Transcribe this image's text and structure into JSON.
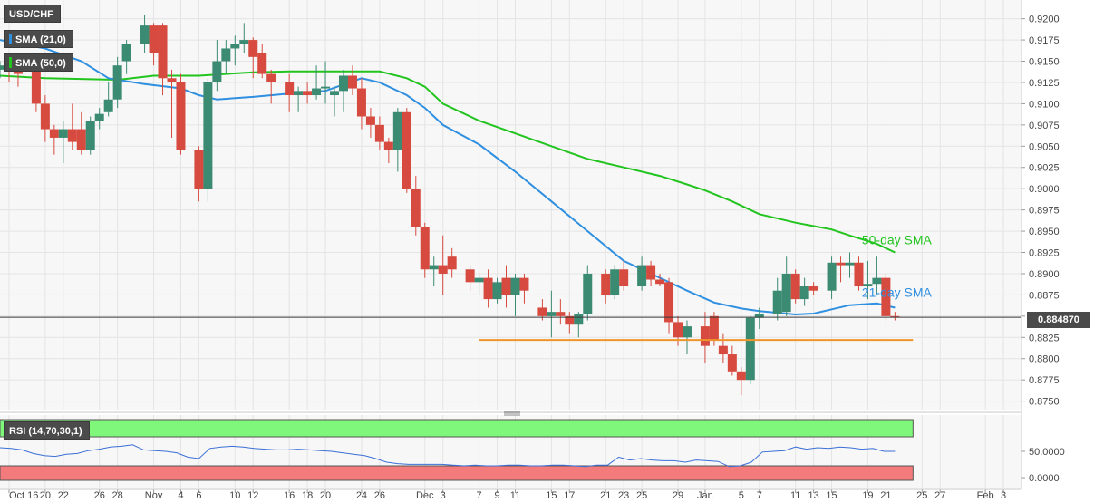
{
  "legend": {
    "symbol": "USD/CHF",
    "sma21": "SMA (21,0)",
    "sma50": "SMA (50,0)",
    "rsi": "RSI (14,70,30,1)"
  },
  "colors": {
    "bull": "#3b8a72",
    "bear": "#d64a3f",
    "sma21": "#2f8fe0",
    "sma50": "#22c41e",
    "support": "#f0952b",
    "rsi_line": "#3b6fd6",
    "rsi_overbought": "#7ef77a",
    "rsi_oversold": "#f47b7b"
  },
  "last_price": "0.884870",
  "annotations": {
    "sma50": "50-day SMA",
    "sma21": "21-day SMA"
  },
  "chart_data": {
    "type": "candlestick",
    "y_ticks": [
      "0.9200",
      "0.9175",
      "0.9150",
      "0.9125",
      "0.9100",
      "0.9075",
      "0.9050",
      "0.9025",
      "0.9000",
      "0.8975",
      "0.8950",
      "0.8925",
      "0.8900",
      "0.8875",
      "0.8850",
      "0.8825",
      "0.8800",
      "0.8775",
      "0.8750"
    ],
    "y_tick_values": [
      0.92,
      0.9175,
      0.915,
      0.9125,
      0.91,
      0.9075,
      0.905,
      0.9025,
      0.9,
      0.8975,
      0.895,
      0.8925,
      0.89,
      0.8875,
      0.885,
      0.8825,
      0.88,
      0.8775,
      0.875
    ],
    "ylim": [
      0.874,
      0.9222
    ],
    "x_ticks": [
      "Oct 16",
      "20",
      "22",
      "26",
      "28",
      "Nov",
      "4",
      "6",
      "10",
      "12",
      "16",
      "18",
      "20",
      "24",
      "26",
      "Dec",
      "3",
      "7",
      "9",
      "11",
      "15",
      "17",
      "21",
      "23",
      "25",
      "29",
      "Jan",
      "5",
      "7",
      "11",
      "13",
      "15",
      "19",
      "21",
      "25",
      "27",
      "Feb",
      "3"
    ],
    "x_tick_dates": [
      "2017-10-16",
      "2017-10-20",
      "2017-10-22",
      "2017-10-26",
      "2017-10-28",
      "2017-11-01",
      "2017-11-04",
      "2017-11-06",
      "2017-11-10",
      "2017-11-12",
      "2017-11-16",
      "2017-11-18",
      "2017-11-20",
      "2017-11-24",
      "2017-11-26",
      "2017-12-01",
      "2017-12-03",
      "2017-12-07",
      "2017-12-09",
      "2017-12-11",
      "2017-12-15",
      "2017-12-17",
      "2017-12-21",
      "2017-12-23",
      "2017-12-25",
      "2017-12-29",
      "2018-01-01",
      "2018-01-05",
      "2018-01-07",
      "2018-01-11",
      "2018-01-13",
      "2018-01-15",
      "2018-01-19",
      "2018-01-21",
      "2018-01-25",
      "2018-01-27",
      "2018-02-01",
      "2018-02-03"
    ],
    "xlim": [
      "2017-10-15",
      "2018-02-05"
    ],
    "candles": [
      [
        "2017-10-15",
        0.914,
        0.915,
        0.913,
        0.9145
      ],
      [
        "2017-10-16",
        0.9145,
        0.916,
        0.9125,
        0.914
      ],
      [
        "2017-10-17",
        0.914,
        0.915,
        0.912,
        0.9135
      ],
      [
        "2017-10-19",
        0.9145,
        0.915,
        0.909,
        0.91
      ],
      [
        "2017-10-20",
        0.91,
        0.911,
        0.9055,
        0.907
      ],
      [
        "2017-10-21",
        0.907,
        0.9075,
        0.904,
        0.906
      ],
      [
        "2017-10-22",
        0.906,
        0.908,
        0.903,
        0.907
      ],
      [
        "2017-10-23",
        0.907,
        0.91,
        0.9045,
        0.9055
      ],
      [
        "2017-10-24",
        0.907,
        0.909,
        0.904,
        0.9045
      ],
      [
        "2017-10-25",
        0.9045,
        0.9085,
        0.904,
        0.908
      ],
      [
        "2017-10-26",
        0.908,
        0.9095,
        0.907,
        0.9088
      ],
      [
        "2017-10-27",
        0.909,
        0.9125,
        0.9085,
        0.9105
      ],
      [
        "2017-10-28",
        0.9105,
        0.9155,
        0.9095,
        0.9145
      ],
      [
        "2017-10-29",
        0.915,
        0.9175,
        0.9135,
        0.917
      ],
      [
        "2017-10-31",
        0.917,
        0.9205,
        0.916,
        0.9192
      ],
      [
        "2017-11-01",
        0.9192,
        0.9195,
        0.9145,
        0.916
      ],
      [
        "2017-11-02",
        0.9192,
        0.9195,
        0.911,
        0.913
      ],
      [
        "2017-11-03",
        0.913,
        0.914,
        0.906,
        0.9125
      ],
      [
        "2017-11-04",
        0.9125,
        0.9135,
        0.904,
        0.9045
      ],
      [
        "2017-11-06",
        0.9045,
        0.905,
        0.8985,
        0.9
      ],
      [
        "2017-11-07",
        0.9,
        0.913,
        0.8985,
        0.9125
      ],
      [
        "2017-11-08",
        0.9125,
        0.9175,
        0.9115,
        0.915
      ],
      [
        "2017-11-09",
        0.915,
        0.9175,
        0.9135,
        0.9165
      ],
      [
        "2017-11-10",
        0.9165,
        0.918,
        0.9145,
        0.917
      ],
      [
        "2017-11-11",
        0.917,
        0.9195,
        0.916,
        0.9175
      ],
      [
        "2017-11-12",
        0.9175,
        0.9178,
        0.913,
        0.9155
      ],
      [
        "2017-11-13",
        0.916,
        0.917,
        0.913,
        0.9135
      ],
      [
        "2017-11-14",
        0.9135,
        0.914,
        0.91,
        0.9125
      ],
      [
        "2017-11-16",
        0.9125,
        0.9135,
        0.909,
        0.911
      ],
      [
        "2017-11-17",
        0.911,
        0.912,
        0.909,
        0.9115
      ],
      [
        "2017-11-18",
        0.9115,
        0.9125,
        0.91,
        0.911
      ],
      [
        "2017-11-19",
        0.911,
        0.9145,
        0.9105,
        0.9118
      ],
      [
        "2017-11-20",
        0.9118,
        0.915,
        0.91,
        0.912
      ],
      [
        "2017-11-21",
        0.911,
        0.912,
        0.9085,
        0.9115
      ],
      [
        "2017-11-22",
        0.9115,
        0.914,
        0.909,
        0.9133
      ],
      [
        "2017-11-23",
        0.9133,
        0.9145,
        0.911,
        0.9118
      ],
      [
        "2017-11-24",
        0.9118,
        0.913,
        0.907,
        0.9085
      ],
      [
        "2017-11-25",
        0.9085,
        0.9095,
        0.906,
        0.9075
      ],
      [
        "2017-11-26",
        0.9075,
        0.9085,
        0.9045,
        0.9055
      ],
      [
        "2017-11-27",
        0.9055,
        0.906,
        0.903,
        0.9045
      ],
      [
        "2017-11-28",
        0.9045,
        0.9095,
        0.902,
        0.909
      ],
      [
        "2017-11-29",
        0.909,
        0.9095,
        0.8995,
        0.9
      ],
      [
        "2017-11-30",
        0.9,
        0.9015,
        0.8945,
        0.8955
      ],
      [
        "2017-12-01",
        0.8955,
        0.896,
        0.8895,
        0.8905
      ],
      [
        "2017-12-02",
        0.8905,
        0.892,
        0.8885,
        0.891
      ],
      [
        "2017-12-03",
        0.891,
        0.8945,
        0.8875,
        0.89
      ],
      [
        "2017-12-04",
        0.892,
        0.893,
        0.8895,
        0.8905
      ],
      [
        "2017-12-06",
        0.8905,
        0.891,
        0.888,
        0.889
      ],
      [
        "2017-12-07",
        0.889,
        0.89,
        0.8875,
        0.8895
      ],
      [
        "2017-12-08",
        0.8895,
        0.8905,
        0.886,
        0.887
      ],
      [
        "2017-12-09",
        0.887,
        0.8895,
        0.8865,
        0.889
      ],
      [
        "2017-12-10",
        0.8895,
        0.891,
        0.886,
        0.8875
      ],
      [
        "2017-12-11",
        0.8875,
        0.89,
        0.885,
        0.8895
      ],
      [
        "2017-12-12",
        0.8895,
        0.89,
        0.8865,
        0.888
      ],
      [
        "2017-12-14",
        0.886,
        0.887,
        0.8845,
        0.885
      ],
      [
        "2017-12-15",
        0.885,
        0.888,
        0.8825,
        0.8855
      ],
      [
        "2017-12-16",
        0.8855,
        0.887,
        0.884,
        0.885
      ],
      [
        "2017-12-17",
        0.885,
        0.8855,
        0.883,
        0.884
      ],
      [
        "2017-12-18",
        0.884,
        0.8855,
        0.8825,
        0.8853
      ],
      [
        "2017-12-19",
        0.8853,
        0.891,
        0.8845,
        0.89
      ],
      [
        "2017-12-21",
        0.89,
        0.8905,
        0.8865,
        0.8875
      ],
      [
        "2017-12-22",
        0.8875,
        0.891,
        0.887,
        0.8905
      ],
      [
        "2017-12-23",
        0.8905,
        0.8915,
        0.888,
        0.8885
      ],
      [
        "2017-12-25",
        0.8885,
        0.892,
        0.888,
        0.891
      ],
      [
        "2017-12-26",
        0.891,
        0.8915,
        0.8885,
        0.8893
      ],
      [
        "2017-12-27",
        0.8893,
        0.89,
        0.8885,
        0.8888
      ],
      [
        "2017-12-28",
        0.889,
        0.8895,
        0.883,
        0.8843
      ],
      [
        "2017-12-29",
        0.8843,
        0.885,
        0.8815,
        0.8825
      ],
      [
        "2017-12-30",
        0.8825,
        0.8845,
        0.8805,
        0.8838
      ],
      [
        "2018-01-01",
        0.8838,
        0.8855,
        0.8795,
        0.8815
      ],
      [
        "2018-01-02",
        0.885,
        0.8855,
        0.8815,
        0.8822
      ],
      [
        "2018-01-03",
        0.8815,
        0.883,
        0.8795,
        0.8805
      ],
      [
        "2018-01-04",
        0.8805,
        0.8815,
        0.878,
        0.8785
      ],
      [
        "2018-01-05",
        0.8785,
        0.879,
        0.8757,
        0.8775
      ],
      [
        "2018-01-06",
        0.8775,
        0.885,
        0.877,
        0.8848
      ],
      [
        "2018-01-07",
        0.8848,
        0.886,
        0.8835,
        0.8852
      ],
      [
        "2018-01-09",
        0.8852,
        0.8895,
        0.8845,
        0.888
      ],
      [
        "2018-01-10",
        0.8855,
        0.892,
        0.885,
        0.89
      ],
      [
        "2018-01-11",
        0.89,
        0.8905,
        0.8865,
        0.887
      ],
      [
        "2018-01-12",
        0.887,
        0.8895,
        0.8862,
        0.8885
      ],
      [
        "2018-01-13",
        0.8885,
        0.889,
        0.8875,
        0.888
      ],
      [
        "2018-01-15",
        0.888,
        0.892,
        0.887,
        0.8913
      ],
      [
        "2018-01-16",
        0.8913,
        0.892,
        0.889,
        0.891
      ],
      [
        "2018-01-17",
        0.891,
        0.8925,
        0.8895,
        0.8913
      ],
      [
        "2018-01-18",
        0.8913,
        0.892,
        0.888,
        0.8885
      ],
      [
        "2018-01-19",
        0.8885,
        0.8915,
        0.887,
        0.8888
      ],
      [
        "2018-01-20",
        0.8888,
        0.892,
        0.8875,
        0.8895
      ],
      [
        "2018-01-21",
        0.8895,
        0.89,
        0.8845,
        0.885
      ],
      [
        "2018-01-22",
        0.885,
        0.8855,
        0.8845,
        0.8849
      ]
    ],
    "sma21": [
      [
        "2017-10-15",
        0.9175
      ],
      [
        "2017-10-20",
        0.9165
      ],
      [
        "2017-10-24",
        0.915
      ],
      [
        "2017-10-27",
        0.913
      ],
      [
        "2017-10-31",
        0.9123
      ],
      [
        "2017-11-04",
        0.9118
      ],
      [
        "2017-11-06",
        0.911
      ],
      [
        "2017-11-08",
        0.9105
      ],
      [
        "2017-11-12",
        0.9108
      ],
      [
        "2017-11-16",
        0.9112
      ],
      [
        "2017-11-20",
        0.9115
      ],
      [
        "2017-11-24",
        0.913
      ],
      [
        "2017-11-26",
        0.9125
      ],
      [
        "2017-11-29",
        0.911
      ],
      [
        "2017-12-01",
        0.9095
      ],
      [
        "2017-12-03",
        0.9075
      ],
      [
        "2017-12-07",
        0.9052
      ],
      [
        "2017-12-11",
        0.902
      ],
      [
        "2017-12-15",
        0.8985
      ],
      [
        "2017-12-19",
        0.895
      ],
      [
        "2017-12-23",
        0.8915
      ],
      [
        "2017-12-27",
        0.8895
      ],
      [
        "2017-12-30",
        0.888
      ],
      [
        "2018-01-02",
        0.8866
      ],
      [
        "2018-01-05",
        0.8859
      ],
      [
        "2018-01-07",
        0.8856
      ],
      [
        "2018-01-11",
        0.8852
      ],
      [
        "2018-01-13",
        0.8853
      ],
      [
        "2018-01-15",
        0.8858
      ],
      [
        "2018-01-17",
        0.8863
      ],
      [
        "2018-01-20",
        0.8865
      ],
      [
        "2018-01-22",
        0.886
      ]
    ],
    "sma50": [
      [
        "2017-10-15",
        0.9133
      ],
      [
        "2017-10-20",
        0.913
      ],
      [
        "2017-10-28",
        0.9128
      ],
      [
        "2017-11-01",
        0.9133
      ],
      [
        "2017-11-06",
        0.9133
      ],
      [
        "2017-11-12",
        0.9137
      ],
      [
        "2017-11-16",
        0.9138
      ],
      [
        "2017-11-24",
        0.9138
      ],
      [
        "2017-11-26",
        0.9138
      ],
      [
        "2017-11-29",
        0.913
      ],
      [
        "2017-12-01",
        0.912
      ],
      [
        "2017-12-03",
        0.91
      ],
      [
        "2017-12-07",
        0.908
      ],
      [
        "2017-12-11",
        0.9065
      ],
      [
        "2017-12-15",
        0.905
      ],
      [
        "2017-12-19",
        0.9035
      ],
      [
        "2017-12-23",
        0.9025
      ],
      [
        "2017-12-27",
        0.9015
      ],
      [
        "2017-12-30",
        0.9005
      ],
      [
        "2018-01-01",
        0.8998
      ],
      [
        "2018-01-04",
        0.8985
      ],
      [
        "2018-01-07",
        0.897
      ],
      [
        "2018-01-11",
        0.896
      ],
      [
        "2018-01-15",
        0.8952
      ],
      [
        "2018-01-17",
        0.8945
      ],
      [
        "2018-01-20",
        0.8935
      ],
      [
        "2018-01-22",
        0.8925
      ]
    ],
    "support": {
      "from": "2017-12-07",
      "to": "2018-01-24",
      "value": 0.8822
    },
    "last": 0.88487,
    "rsi": {
      "ylim": [
        0,
        100
      ],
      "ticks": [
        "50.0000",
        "0.0000"
      ],
      "tick_values": [
        50,
        0
      ],
      "overbought": 70,
      "oversold": 30,
      "values": [
        55,
        54,
        52,
        47,
        44,
        43,
        46,
        47,
        51,
        53,
        56,
        57,
        59,
        52,
        51,
        50,
        48,
        42,
        40,
        54,
        56,
        57,
        56,
        54,
        53,
        52,
        52,
        53,
        52,
        51,
        50,
        48,
        46,
        44,
        40,
        35,
        33,
        32,
        32,
        32,
        32,
        31,
        30,
        31,
        30,
        30,
        31,
        31,
        30,
        30,
        31,
        31,
        30,
        29,
        31,
        31,
        42,
        38,
        40,
        38,
        37,
        37,
        35,
        38,
        37,
        36,
        29,
        30,
        35,
        49,
        50,
        51,
        56,
        53,
        55,
        54,
        56,
        55,
        53,
        54,
        50,
        50
      ]
    }
  }
}
